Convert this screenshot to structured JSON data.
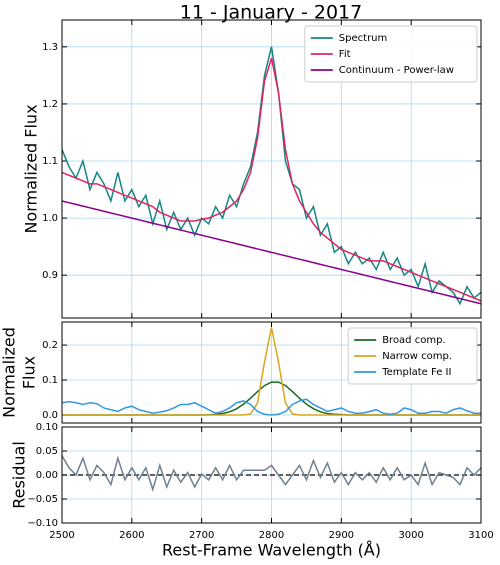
{
  "chart_data": [
    {
      "type": "line",
      "title": "11 - January - 2017",
      "ylabel": "Normalized Flux",
      "x": [
        2500,
        2510,
        2520,
        2530,
        2540,
        2550,
        2560,
        2570,
        2580,
        2590,
        2600,
        2610,
        2620,
        2630,
        2640,
        2650,
        2660,
        2670,
        2680,
        2690,
        2700,
        2710,
        2720,
        2730,
        2740,
        2750,
        2760,
        2770,
        2780,
        2790,
        2800,
        2810,
        2820,
        2830,
        2840,
        2850,
        2860,
        2870,
        2880,
        2890,
        2900,
        2910,
        2920,
        2930,
        2940,
        2950,
        2960,
        2970,
        2980,
        2990,
        3000,
        3010,
        3020,
        3030,
        3040,
        3050,
        3060,
        3070,
        3080,
        3090,
        3100
      ],
      "series": [
        {
          "name": "Spectrum",
          "color": "#168585",
          "values": [
            1.12,
            1.09,
            1.07,
            1.1,
            1.05,
            1.08,
            1.06,
            1.03,
            1.08,
            1.03,
            1.05,
            1.02,
            1.04,
            0.99,
            1.03,
            0.98,
            1.01,
            0.98,
            1.0,
            0.97,
            1.0,
            0.99,
            1.02,
            1.0,
            1.04,
            1.02,
            1.06,
            1.09,
            1.15,
            1.25,
            1.3,
            1.22,
            1.1,
            1.06,
            1.05,
            1.0,
            1.02,
            0.97,
            0.99,
            0.94,
            0.95,
            0.92,
            0.94,
            0.92,
            0.93,
            0.91,
            0.94,
            0.91,
            0.93,
            0.9,
            0.91,
            0.88,
            0.92,
            0.87,
            0.89,
            0.88,
            0.87,
            0.85,
            0.88,
            0.86,
            0.87
          ]
        },
        {
          "name": "Fit",
          "color": "#e0245e",
          "values": [
            1.08,
            1.075,
            1.07,
            1.065,
            1.06,
            1.06,
            1.055,
            1.05,
            1.045,
            1.04,
            1.035,
            1.03,
            1.025,
            1.02,
            1.01,
            1.005,
            1.0,
            0.995,
            0.995,
            0.995,
            0.998,
            1.0,
            1.005,
            1.01,
            1.02,
            1.03,
            1.05,
            1.08,
            1.14,
            1.24,
            1.28,
            1.22,
            1.12,
            1.06,
            1.03,
            1.01,
            0.99,
            0.975,
            0.965,
            0.955,
            0.945,
            0.94,
            0.935,
            0.93,
            0.925,
            0.925,
            0.925,
            0.92,
            0.915,
            0.91,
            0.905,
            0.9,
            0.895,
            0.89,
            0.885,
            0.88,
            0.875,
            0.87,
            0.865,
            0.86,
            0.855
          ]
        },
        {
          "name": "Continuum - Power-law",
          "color": "#8b008b",
          "values": [
            1.03,
            1.027,
            1.024,
            1.021,
            1.018,
            1.015,
            1.012,
            1.009,
            1.006,
            1.003,
            1.0,
            0.997,
            0.994,
            0.991,
            0.988,
            0.985,
            0.982,
            0.979,
            0.976,
            0.973,
            0.97,
            0.967,
            0.964,
            0.961,
            0.958,
            0.955,
            0.952,
            0.949,
            0.946,
            0.943,
            0.94,
            0.937,
            0.934,
            0.931,
            0.928,
            0.925,
            0.922,
            0.919,
            0.916,
            0.913,
            0.91,
            0.907,
            0.904,
            0.901,
            0.898,
            0.895,
            0.892,
            0.889,
            0.886,
            0.883,
            0.88,
            0.877,
            0.874,
            0.871,
            0.868,
            0.865,
            0.862,
            0.859,
            0.856,
            0.853,
            0.85
          ]
        }
      ],
      "ylim": [
        0.825,
        1.347
      ],
      "yticks": [
        0.9,
        {
          "value": 1.0,
          "label": "1.0"
        },
        1.1,
        1.2,
        1.3
      ],
      "grid": true,
      "legend": "upper right"
    },
    {
      "type": "line",
      "ylabel": [
        "Normalized",
        "Flux"
      ],
      "x": [
        2500,
        2510,
        2520,
        2530,
        2540,
        2550,
        2560,
        2570,
        2580,
        2590,
        2600,
        2610,
        2620,
        2630,
        2640,
        2650,
        2660,
        2670,
        2680,
        2690,
        2700,
        2710,
        2720,
        2730,
        2740,
        2750,
        2760,
        2770,
        2780,
        2790,
        2800,
        2810,
        2820,
        2830,
        2840,
        2850,
        2860,
        2870,
        2880,
        2890,
        2900,
        2910,
        2920,
        2930,
        2940,
        2950,
        2960,
        2970,
        2980,
        2990,
        3000,
        3010,
        3020,
        3030,
        3040,
        3050,
        3060,
        3070,
        3080,
        3090,
        3100
      ],
      "series": [
        {
          "name": "Broad comp.",
          "color": "#1a6b1a",
          "values": [
            0,
            0,
            0,
            0,
            0,
            0,
            0,
            0,
            0,
            0,
            0,
            0,
            0,
            0,
            0,
            0,
            0,
            0,
            0,
            0,
            0,
            0.0006,
            0.0017,
            0.0042,
            0.009,
            0.0177,
            0.031,
            0.048,
            0.067,
            0.084,
            0.094,
            0.094,
            0.084,
            0.067,
            0.048,
            0.031,
            0.018,
            0.009,
            0.004,
            0.002,
            0.001,
            0,
            0,
            0,
            0,
            0,
            0,
            0,
            0,
            0,
            0,
            0,
            0,
            0,
            0,
            0,
            0,
            0,
            0,
            0,
            0
          ]
        },
        {
          "name": "Narrow comp.",
          "color": "#daa520",
          "values": [
            0,
            0,
            0,
            0,
            0,
            0,
            0,
            0,
            0,
            0,
            0,
            0,
            0,
            0,
            0,
            0,
            0,
            0,
            0,
            0,
            0,
            0,
            0,
            0,
            0,
            0,
            0,
            0.003,
            0.034,
            0.152,
            0.25,
            0.152,
            0.034,
            0.003,
            0,
            0,
            0,
            0,
            0,
            0,
            0,
            0,
            0,
            0,
            0,
            0,
            0,
            0,
            0,
            0,
            0,
            0,
            0,
            0,
            0,
            0,
            0,
            0,
            0,
            0,
            0
          ]
        },
        {
          "name": "Template Fe II",
          "color": "#3399dd",
          "values": [
            0.035,
            0.038,
            0.035,
            0.03,
            0.035,
            0.032,
            0.02,
            0.015,
            0.01,
            0.02,
            0.025,
            0.015,
            0.01,
            0.005,
            0.008,
            0.012,
            0.02,
            0.03,
            0.03,
            0.035,
            0.025,
            0.015,
            0.005,
            0.01,
            0.02,
            0.035,
            0.04,
            0.03,
            0.01,
            0.002,
            0,
            0.002,
            0.01,
            0.03,
            0.04,
            0.045,
            0.03,
            0.02,
            0.01,
            0.015,
            0.02,
            0.01,
            0.005,
            0.005,
            0.01,
            0.015,
            0.005,
            0.002,
            0.005,
            0.02,
            0.015,
            0.005,
            0.005,
            0.01,
            0.01,
            0.005,
            0.015,
            0.02,
            0.012,
            0.005,
            0.005
          ]
        }
      ],
      "ylim": [
        -0.023,
        0.266
      ],
      "yticks": [
        {
          "value": 0,
          "label": "0.0"
        },
        0.1,
        0.2
      ],
      "grid": true,
      "legend": "upper right"
    },
    {
      "type": "line",
      "ylabel": "Residual",
      "xlabel": "Rest-Frame Wavelength (Å)",
      "x": [
        2500,
        2510,
        2520,
        2530,
        2540,
        2550,
        2560,
        2570,
        2580,
        2590,
        2600,
        2610,
        2620,
        2630,
        2640,
        2650,
        2660,
        2670,
        2680,
        2690,
        2700,
        2710,
        2720,
        2730,
        2740,
        2750,
        2760,
        2770,
        2780,
        2790,
        2800,
        2810,
        2820,
        2830,
        2840,
        2850,
        2860,
        2870,
        2880,
        2890,
        2900,
        2910,
        2920,
        2930,
        2940,
        2950,
        2960,
        2970,
        2980,
        2990,
        3000,
        3010,
        3020,
        3030,
        3040,
        3050,
        3060,
        3070,
        3080,
        3090,
        3100
      ],
      "values": [
        0.04,
        0.015,
        0,
        0.035,
        -0.01,
        0.02,
        0.005,
        -0.02,
        0.035,
        -0.01,
        0.015,
        -0.01,
        0.015,
        -0.03,
        0.02,
        -0.025,
        0.01,
        -0.015,
        0.005,
        -0.025,
        0.002,
        -0.01,
        0.015,
        -0.01,
        0.02,
        -0.01,
        0.01,
        0.01,
        0.01,
        0.01,
        0.02,
        0,
        -0.02,
        0,
        0.02,
        -0.01,
        0.03,
        -0.005,
        0.025,
        -0.015,
        0.005,
        -0.02,
        0.005,
        -0.01,
        0.005,
        -0.015,
        0.015,
        -0.01,
        0.015,
        -0.01,
        0,
        -0.02,
        0.025,
        -0.02,
        0.005,
        0,
        -0.005,
        -0.02,
        0.015,
        0,
        0.015
      ],
      "color": "#708090",
      "xlim": [
        2500,
        3100
      ],
      "xticks": [
        2500,
        2600,
        2700,
        2800,
        2900,
        3000,
        3100
      ],
      "ylim": [
        -0.1,
        0.1
      ],
      "yticks": [
        {
          "value": -0.1,
          "label": "−0.10"
        },
        {
          "value": -0.05,
          "label": "−0.05"
        },
        {
          "value": 0,
          "label": "0.00"
        },
        {
          "value": 0.05,
          "label": "0.05"
        },
        {
          "value": 0.1,
          "label": "0.10"
        }
      ],
      "grid": true
    }
  ]
}
